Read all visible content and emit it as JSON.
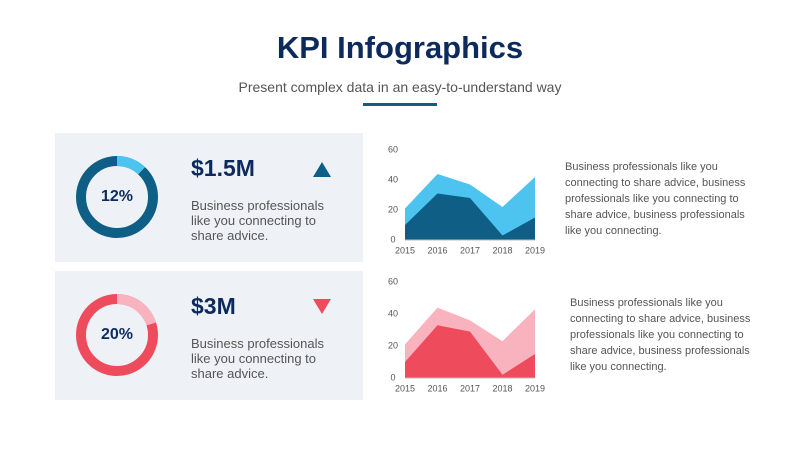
{
  "header": {
    "title": "KPI Infographics",
    "subtitle": "Present complex data in an easy-to-understand way"
  },
  "cards": [
    {
      "kpi": "$1.5M",
      "trend": "up",
      "trend_color": "#0f5e85",
      "text": "Business professionals like you connecting to share advice.",
      "description": "Business professionals like you connecting to share advice, business professionals like you connecting to share advice, business professionals like you connecting."
    },
    {
      "kpi": "$3M",
      "trend": "down",
      "trend_color": "#ee4b5d",
      "text": "Business professionals like you connecting to share advice.",
      "description": "Business professionals like you connecting to share advice, business professionals like you connecting to share advice, business professionals like you connecting."
    }
  ],
  "chart_data": [
    {
      "type": "donut",
      "values": [
        12
      ],
      "value_labels": [
        "12%"
      ],
      "color": "#4dc3f0",
      "track_color": "#0f5e85"
    },
    {
      "type": "area",
      "x": [
        2015,
        2016,
        2017,
        2018,
        2019
      ],
      "xlim": [
        2015,
        2019
      ],
      "xticks": [
        2015,
        2016,
        2017,
        2018,
        2019
      ],
      "ylim": [
        0,
        60
      ],
      "yticks": [
        0,
        20,
        40,
        60
      ],
      "series": [
        {
          "color": "#4dc3f0",
          "values": [
            21,
            44,
            37,
            22,
            42
          ]
        },
        {
          "color": "#0f5e85",
          "values": [
            10,
            31,
            28,
            3,
            15
          ]
        }
      ]
    },
    {
      "type": "donut",
      "values": [
        20
      ],
      "value_labels": [
        "20%"
      ],
      "color": "#f9b3be",
      "track_color": "#ee4b5d"
    },
    {
      "type": "area",
      "x": [
        2015,
        2016,
        2017,
        2018,
        2019
      ],
      "xlim": [
        2015,
        2019
      ],
      "xticks": [
        2015,
        2016,
        2017,
        2018,
        2019
      ],
      "ylim": [
        0,
        60
      ],
      "yticks": [
        0,
        20,
        40,
        60
      ],
      "series": [
        {
          "color": "#f9b3be",
          "values": [
            21,
            44,
            36,
            23,
            43
          ]
        },
        {
          "color": "#ee4b5d",
          "values": [
            10,
            33,
            29,
            2,
            15
          ]
        }
      ]
    }
  ]
}
